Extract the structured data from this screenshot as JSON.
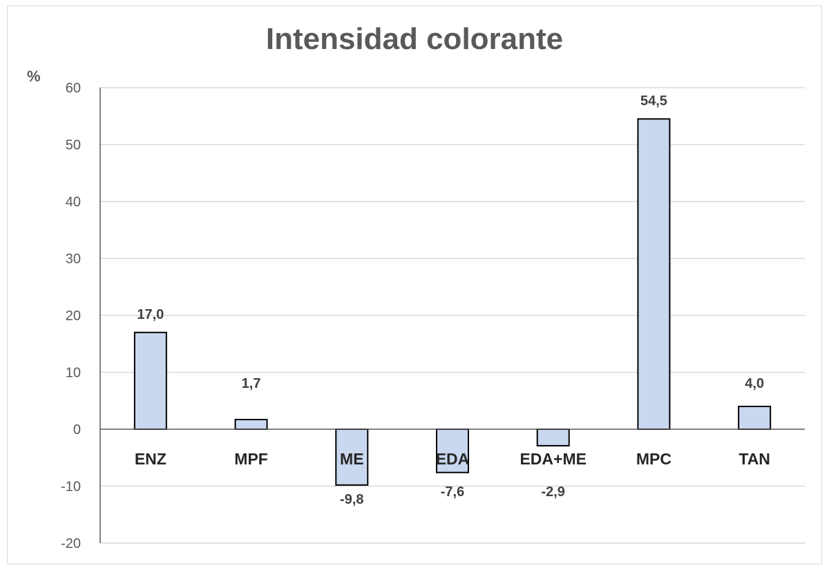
{
  "chart_data": {
    "type": "bar",
    "title": "Intensidad colorante",
    "ylabel": "%",
    "xlabel": "",
    "categories": [
      "ENZ",
      "MPF",
      "ME",
      "EDA",
      "EDA+ME",
      "MPC",
      "TAN"
    ],
    "values": [
      17.0,
      1.7,
      -9.8,
      -7.6,
      -2.9,
      54.5,
      4.0
    ],
    "data_labels": [
      "17,0",
      "1,7",
      "-9,8",
      "-7,6",
      "-2,9",
      "54,5",
      "4,0"
    ],
    "ylim": [
      -20,
      60
    ],
    "yticks": [
      -20,
      -10,
      0,
      10,
      20,
      30,
      40,
      50,
      60
    ],
    "grid": true,
    "legend": "none",
    "colors": {
      "bar_fill": "#c9d7ef",
      "bar_stroke": "#000000",
      "grid": "#d9d9d9",
      "axis": "#595959"
    }
  }
}
